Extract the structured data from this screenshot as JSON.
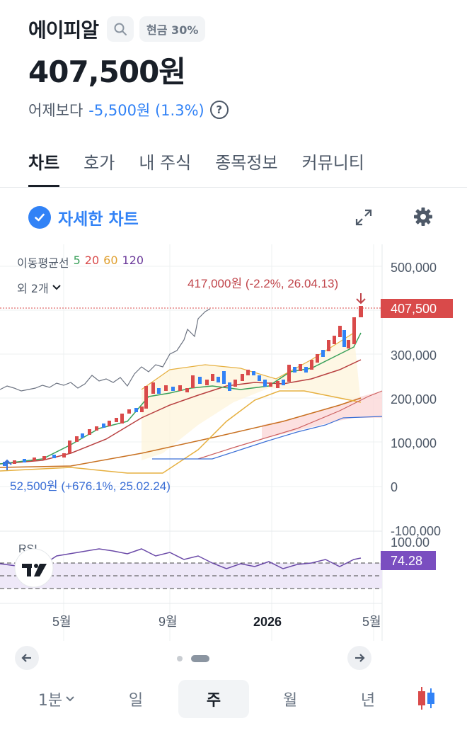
{
  "header": {
    "stock_name": "에이피알",
    "cash_badge": "현금 30%",
    "price": "407,500원",
    "change_label": "어제보다",
    "change_value": "-5,500원 (1.3%)"
  },
  "tabs": [
    {
      "label": "차트",
      "active": true
    },
    {
      "label": "호가",
      "active": false
    },
    {
      "label": "내 주식",
      "active": false
    },
    {
      "label": "종목정보",
      "active": false
    },
    {
      "label": "커뮤니티",
      "active": false
    }
  ],
  "detail_chart_label": "자세한 차트",
  "legend": {
    "title": "이동평균선",
    "ma5": "5",
    "ma20": "20",
    "ma60": "60",
    "ma120": "120",
    "more": "외 2개"
  },
  "chart_data": {
    "type": "candlestick",
    "y_ticks": [
      "500,000",
      "400,000",
      "300,000",
      "200,000",
      "100,000",
      "0",
      "-100,000"
    ],
    "x_ticks": [
      "5월",
      "9월",
      "2026",
      "5월"
    ],
    "current_price_label": "407,500",
    "high_annotation": "417,000원 (-2.2%, 26.04.13)",
    "low_annotation": "52,500원 (+676.1%, 25.02.24)",
    "rsi": {
      "label": "RSI",
      "y_ticks": [
        "100.00"
      ],
      "value_label": "74.28"
    },
    "colors": {
      "up": "#d94a4a",
      "down": "#3182f6",
      "ma5": "#3aa05a",
      "ma20": "#b84040",
      "ma60": "#e0a030",
      "ma120": "#c87020",
      "rsi": "#6b4aa8"
    }
  },
  "periods": [
    {
      "label": "1분",
      "active": false
    },
    {
      "label": "일",
      "active": false
    },
    {
      "label": "주",
      "active": true
    },
    {
      "label": "월",
      "active": false
    },
    {
      "label": "년",
      "active": false
    }
  ]
}
